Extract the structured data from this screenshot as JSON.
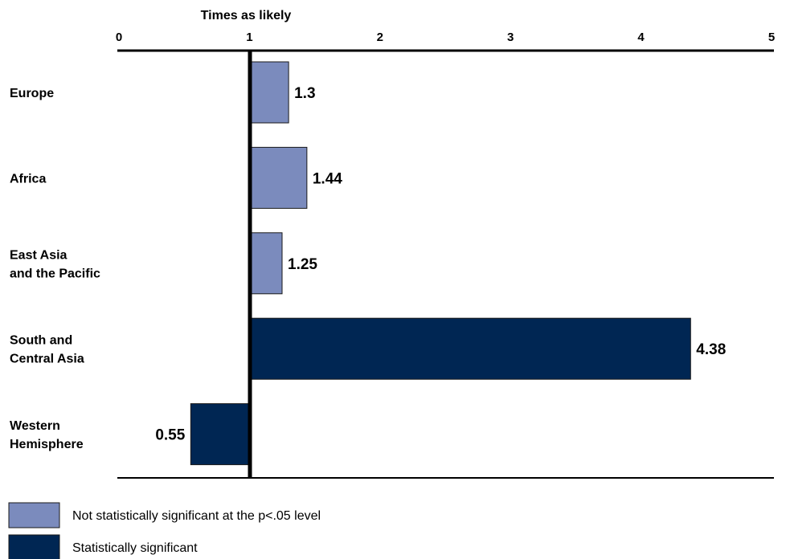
{
  "chart_data": {
    "type": "bar",
    "orientation": "horizontal",
    "xlabel": "Times as likely",
    "xlim": [
      0,
      5
    ],
    "xticks": [
      "0",
      "1",
      "2",
      "3",
      "4",
      "5"
    ],
    "baseline": 1,
    "categories": [
      [
        "Europe"
      ],
      [
        "Africa"
      ],
      [
        "East Asia",
        "and the Pacific"
      ],
      [
        "South and",
        "Central Asia"
      ],
      [
        "Western",
        "Hemisphere"
      ]
    ],
    "values": [
      1.3,
      1.44,
      1.25,
      4.38,
      0.55
    ],
    "value_labels": [
      "1.3",
      "1.44",
      "1.25",
      "4.38",
      "0.55"
    ],
    "significance": [
      "not_significant",
      "not_significant",
      "not_significant",
      "significant",
      "significant"
    ],
    "legend": [
      {
        "key": "not_significant",
        "label": "Not statistically significant at the p<.05 level",
        "color": "#7b8bbd"
      },
      {
        "key": "significant",
        "label": "Statistically significant",
        "color": "#002653"
      }
    ],
    "grid": false
  }
}
